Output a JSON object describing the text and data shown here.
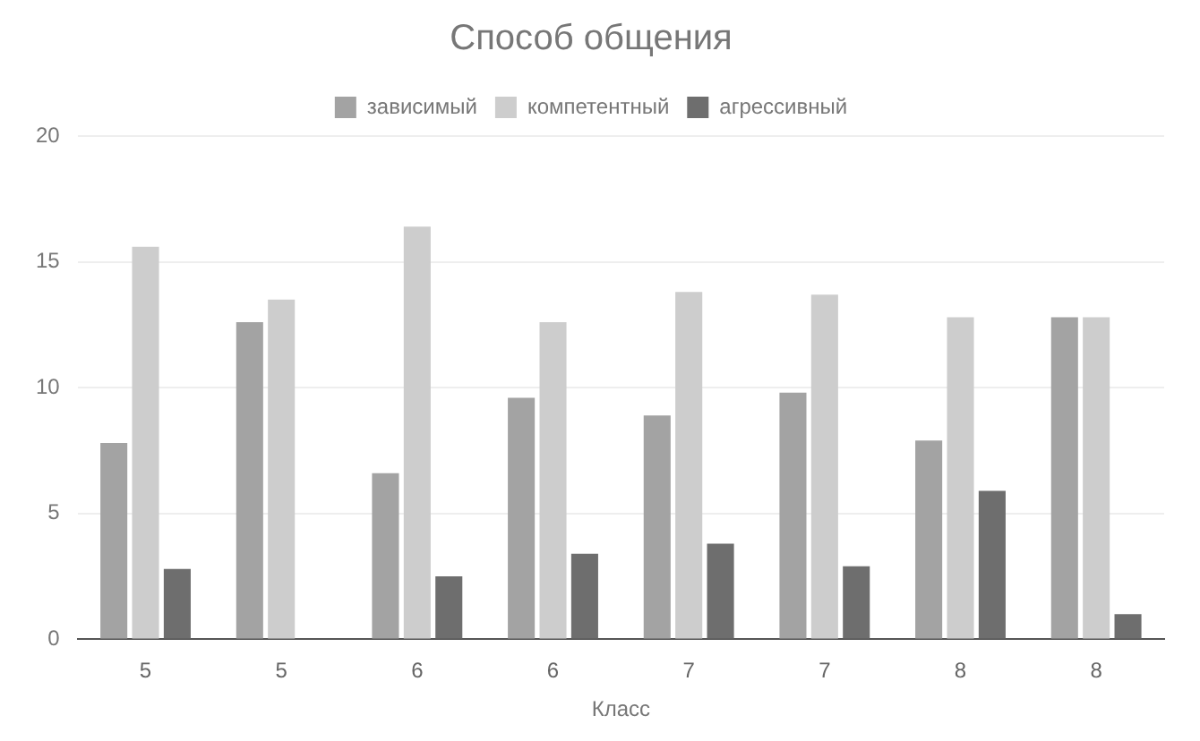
{
  "chart_data": {
    "type": "bar",
    "title": "Способ общения",
    "xlabel": "Класс",
    "categories": [
      "5",
      "5",
      "6",
      "6",
      "7",
      "7",
      "8",
      "8"
    ],
    "series": [
      {
        "name": "зависимый",
        "color": "#a3a3a3",
        "values": [
          7.8,
          12.6,
          6.6,
          9.6,
          8.9,
          9.8,
          7.9,
          12.8
        ]
      },
      {
        "name": "компетентный",
        "color": "#cdcdcd",
        "values": [
          15.6,
          13.5,
          16.4,
          12.6,
          13.8,
          13.7,
          12.8,
          12.8
        ]
      },
      {
        "name": "агрессивный",
        "color": "#6e6e6e",
        "values": [
          2.8,
          0,
          2.5,
          3.4,
          3.8,
          2.9,
          5.9,
          1
        ]
      }
    ],
    "ylim": [
      0,
      20
    ],
    "yticks": [
      0,
      5,
      10,
      15,
      20
    ],
    "grid": "y",
    "legend": "top"
  }
}
